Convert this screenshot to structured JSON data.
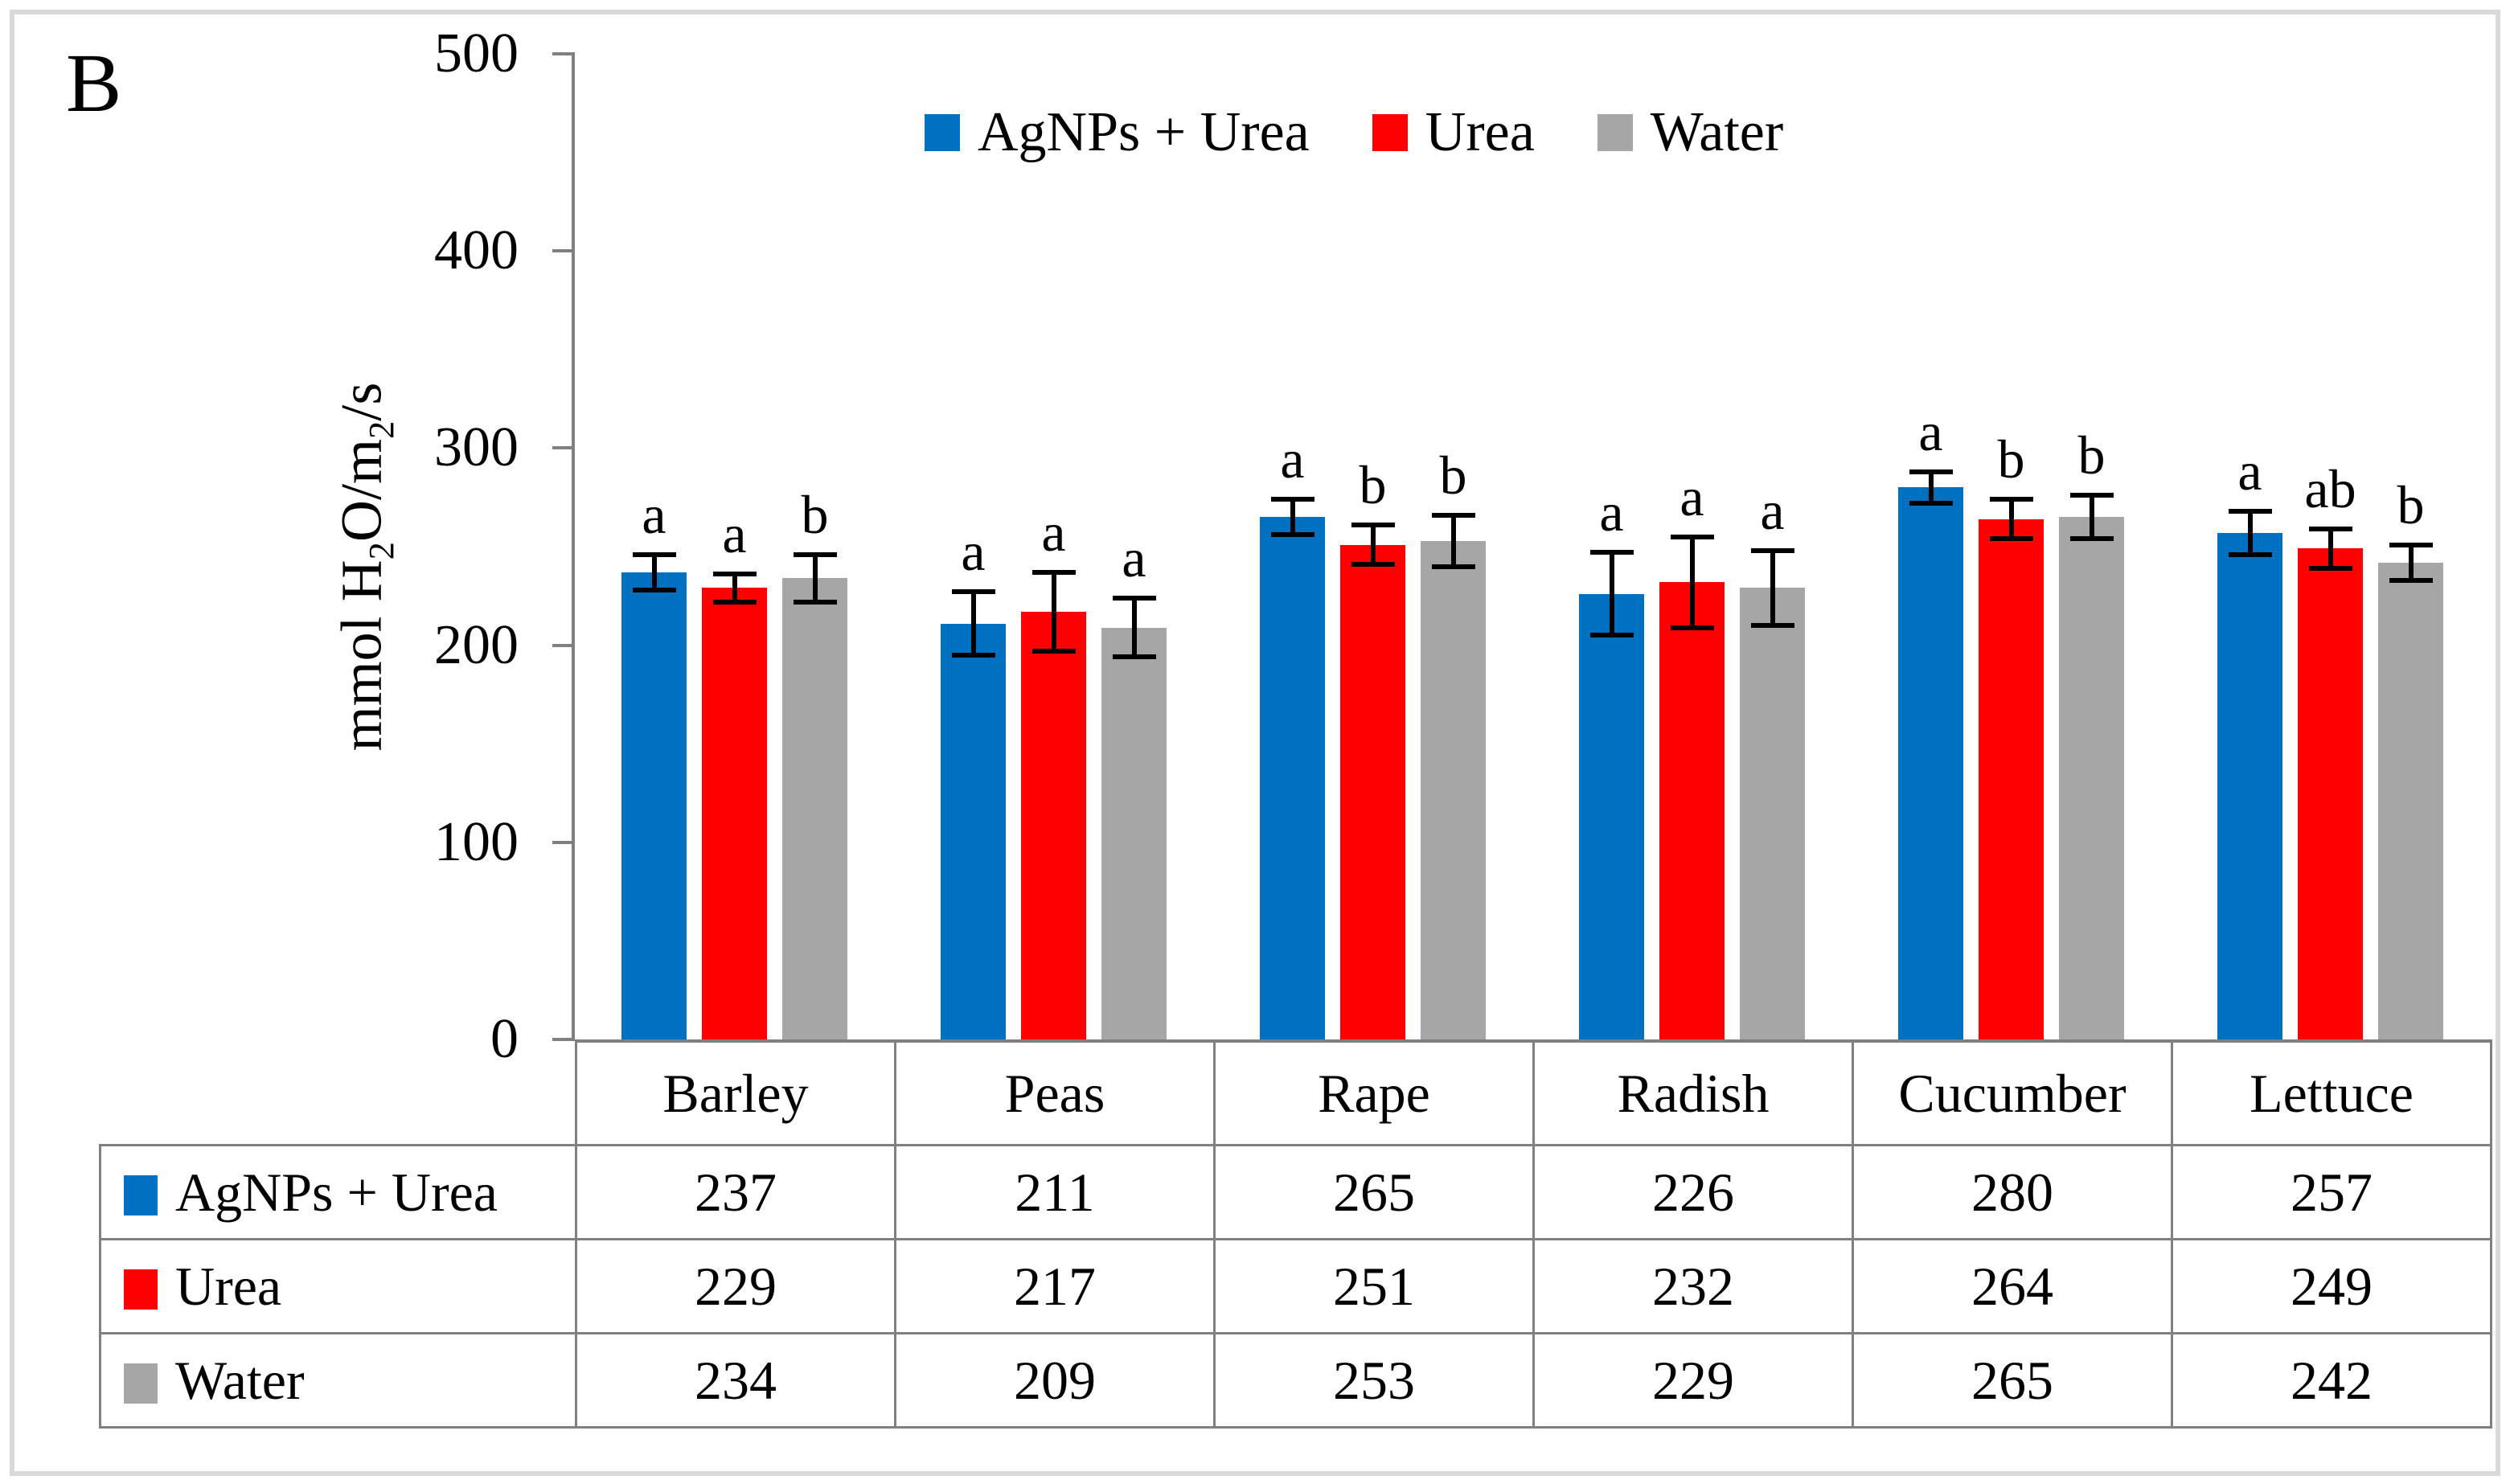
{
  "figure": {
    "panel_label": "B"
  },
  "y_axis": {
    "title_parts": {
      "pre": "mmol H",
      "sub1": "2",
      "mid": "O/m",
      "sub2": "2",
      "post": "/s"
    }
  },
  "colors": {
    "axis_gray": "#808080",
    "frame_gray": "#d9d9d9",
    "error_bar": "#000000"
  },
  "chart_data": {
    "type": "bar",
    "title": "",
    "xlabel": "",
    "ylabel": "mmol H2O/m2/s",
    "ylim": [
      0,
      500
    ],
    "yticks": [
      0,
      100,
      200,
      300,
      400,
      500
    ],
    "grid": false,
    "legend_position": "top-center",
    "data_table_shown": true,
    "categories": [
      "Barley",
      "Peas",
      "Rape",
      "Radish",
      "Cucumber",
      "Lettuce"
    ],
    "series": [
      {
        "name": "AgNPs + Urea",
        "color": "#0070C0",
        "values": [
          237,
          211,
          265,
          226,
          280,
          257
        ],
        "errors": [
          9,
          16,
          9,
          21,
          8,
          11
        ],
        "letters": [
          "a",
          "a",
          "a",
          "a",
          "a",
          "a"
        ]
      },
      {
        "name": "Urea",
        "color": "#FF0000",
        "values": [
          229,
          217,
          251,
          232,
          264,
          249
        ],
        "errors": [
          7,
          20,
          10,
          23,
          10,
          10
        ],
        "letters": [
          "a",
          "a",
          "b",
          "a",
          "b",
          "ab"
        ]
      },
      {
        "name": "Water",
        "color": "#A6A6A6",
        "values": [
          234,
          209,
          253,
          229,
          265,
          242
        ],
        "errors": [
          12,
          15,
          13,
          19,
          11,
          9
        ],
        "letters": [
          "b",
          "a",
          "b",
          "a",
          "b",
          "b"
        ]
      }
    ]
  }
}
